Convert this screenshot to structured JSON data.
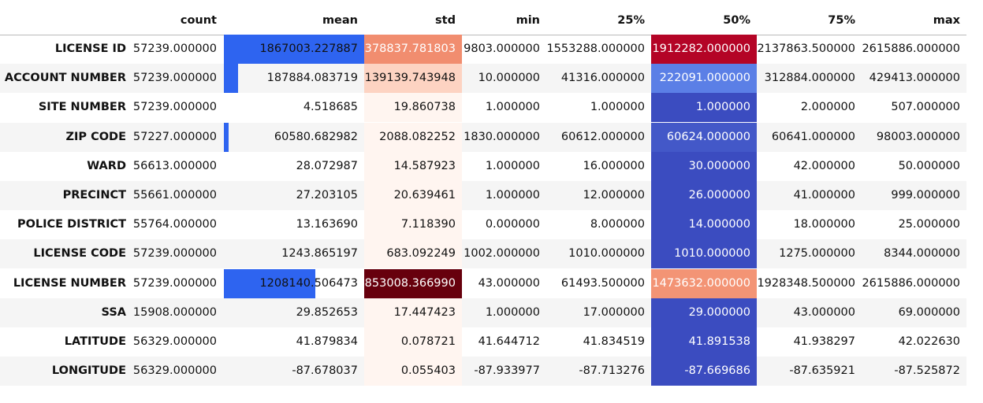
{
  "headers": [
    "count",
    "mean",
    "std",
    "min",
    "25%",
    "50%",
    "75%",
    "max"
  ],
  "rows": [
    {
      "label": "LICENSE ID",
      "values": [
        "57239.000000",
        "1867003.227887",
        "378837.781803",
        "9803.000000",
        "1553288.000000",
        "1912282.000000",
        "2137863.500000",
        "2615886.000000"
      ],
      "mean_bar": 1.0,
      "std_color": "#f18d6f",
      "std_text": "#ffffff",
      "p50_color": "#b40426",
      "p50_text": "#ffffff"
    },
    {
      "label": "ACCOUNT NUMBER",
      "values": [
        "57239.000000",
        "187884.083719",
        "139139.743948",
        "10.000000",
        "41316.000000",
        "222091.000000",
        "312884.000000",
        "429413.000000"
      ],
      "mean_bar": 0.1,
      "std_color": "#fdd3c2",
      "std_text": "#111111",
      "p50_color": "#5b7fe6",
      "p50_text": "#ffffff"
    },
    {
      "label": "SITE NUMBER",
      "values": [
        "57239.000000",
        "4.518685",
        "19.860738",
        "1.000000",
        "1.000000",
        "1.000000",
        "2.000000",
        "507.000000"
      ],
      "mean_bar": 0.0,
      "std_color": "#fff5f0",
      "std_text": "#111111",
      "p50_color": "#3b4cc0",
      "p50_text": "#ffffff"
    },
    {
      "label": "ZIP CODE",
      "values": [
        "57227.000000",
        "60580.682982",
        "2088.082252",
        "1830.000000",
        "60612.000000",
        "60624.000000",
        "60641.000000",
        "98003.000000"
      ],
      "mean_bar": 0.03,
      "std_color": "#fff5f0",
      "std_text": "#111111",
      "p50_color": "#4358c8",
      "p50_text": "#ffffff"
    },
    {
      "label": "WARD",
      "values": [
        "56613.000000",
        "28.072987",
        "14.587923",
        "1.000000",
        "16.000000",
        "30.000000",
        "42.000000",
        "50.000000"
      ],
      "mean_bar": 0.0,
      "std_color": "#fff5f0",
      "std_text": "#111111",
      "p50_color": "#3b4cc0",
      "p50_text": "#ffffff"
    },
    {
      "label": "PRECINCT",
      "values": [
        "55661.000000",
        "27.203105",
        "20.639461",
        "1.000000",
        "12.000000",
        "26.000000",
        "41.000000",
        "999.000000"
      ],
      "mean_bar": 0.0,
      "std_color": "#fff5f0",
      "std_text": "#111111",
      "p50_color": "#3b4cc0",
      "p50_text": "#ffffff"
    },
    {
      "label": "POLICE DISTRICT",
      "values": [
        "55764.000000",
        "13.163690",
        "7.118390",
        "0.000000",
        "8.000000",
        "14.000000",
        "18.000000",
        "25.000000"
      ],
      "mean_bar": 0.0,
      "std_color": "#fff5f0",
      "std_text": "#111111",
      "p50_color": "#3b4cc0",
      "p50_text": "#ffffff"
    },
    {
      "label": "LICENSE CODE",
      "values": [
        "57239.000000",
        "1243.865197",
        "683.092249",
        "1002.000000",
        "1010.000000",
        "1010.000000",
        "1275.000000",
        "8344.000000"
      ],
      "mean_bar": 0.0,
      "std_color": "#fff5f0",
      "std_text": "#111111",
      "p50_color": "#3b4cc0",
      "p50_text": "#ffffff"
    },
    {
      "label": "LICENSE NUMBER",
      "values": [
        "57239.000000",
        "1208140.506473",
        "853008.366990",
        "43.000000",
        "61493.500000",
        "1473632.000000",
        "1928348.500000",
        "2615886.000000"
      ],
      "mean_bar": 0.65,
      "std_color": "#67000d",
      "std_text": "#ffffff",
      "p50_color": "#f39475",
      "p50_text": "#ffffff"
    },
    {
      "label": "SSA",
      "values": [
        "15908.000000",
        "29.852653",
        "17.447423",
        "1.000000",
        "17.000000",
        "29.000000",
        "43.000000",
        "69.000000"
      ],
      "mean_bar": 0.0,
      "std_color": "#fff5f0",
      "std_text": "#111111",
      "p50_color": "#3b4cc0",
      "p50_text": "#ffffff"
    },
    {
      "label": "LATITUDE",
      "values": [
        "56329.000000",
        "41.879834",
        "0.078721",
        "41.644712",
        "41.834519",
        "41.891538",
        "41.938297",
        "42.022630"
      ],
      "mean_bar": 0.0,
      "std_color": "#fff5f0",
      "std_text": "#111111",
      "p50_color": "#3b4cc0",
      "p50_text": "#ffffff"
    },
    {
      "label": "LONGITUDE",
      "values": [
        "56329.000000",
        "-87.678037",
        "0.055403",
        "-87.933977",
        "-87.713276",
        "-87.669686",
        "-87.635921",
        "-87.525872"
      ],
      "mean_bar": 0.0,
      "std_color": "#fff5f0",
      "std_text": "#111111",
      "p50_color": "#3b4cc0",
      "p50_text": "#ffffff"
    }
  ],
  "colors": {
    "mean_bar": "#2e64f0",
    "row_stripe": "#f5f5f5"
  }
}
